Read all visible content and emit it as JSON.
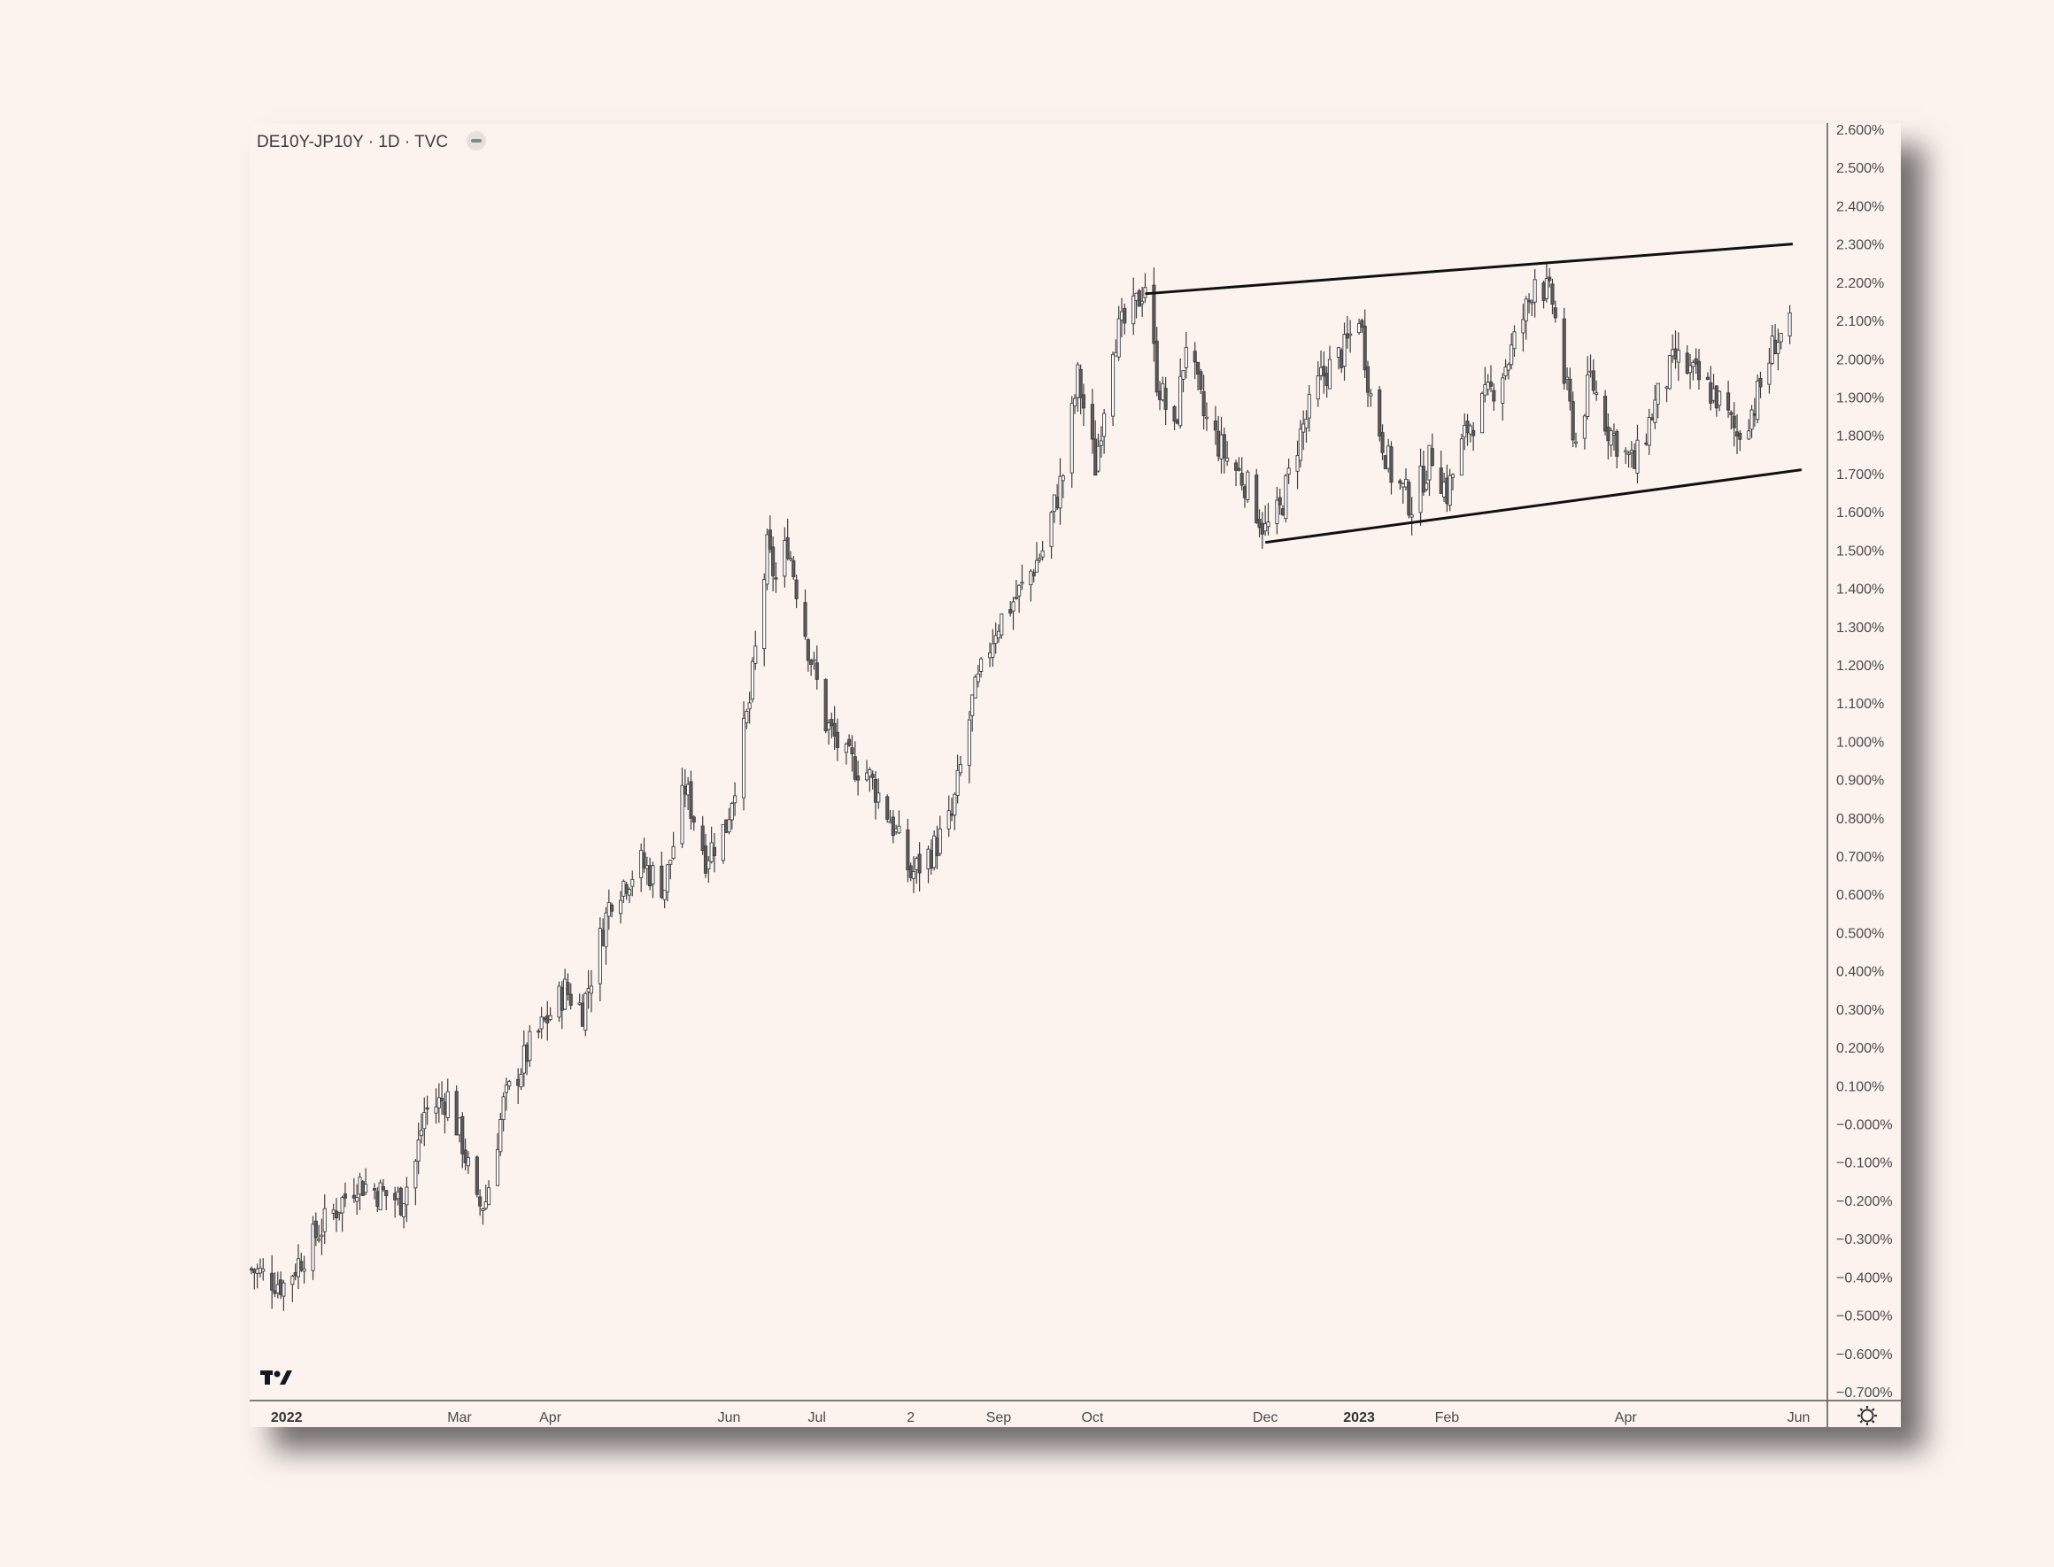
{
  "header": {
    "symbol_title": "DE10Y-JP10Y · 1D · TVC",
    "series_toggle_icon": "minus-pill-icon"
  },
  "branding": {
    "logo_text": "TV",
    "logo_icon": "tradingview-logo-icon"
  },
  "footer": {
    "settings_icon": "gear-icon"
  },
  "colors": {
    "background": "#fcf3ef",
    "candle_body": "#ffffff",
    "candle_wick": "#3e3e3e",
    "trendline": "#111111",
    "axis": "#555555"
  },
  "chart_data": {
    "type": "candlestick",
    "title": "DE10Y-JP10Y · 1D · TVC",
    "xlabel": "",
    "ylabel": "",
    "ylim": [
      -0.7,
      2.6
    ],
    "y_axis_side": "right",
    "y_tick_labels": [
      "2.600%",
      "2.500%",
      "2.400%",
      "2.300%",
      "2.200%",
      "2.100%",
      "2.000%",
      "1.900%",
      "1.800%",
      "1.700%",
      "1.600%",
      "1.500%",
      "1.400%",
      "1.300%",
      "1.200%",
      "1.100%",
      "1.000%",
      "0.900%",
      "0.800%",
      "0.700%",
      "0.600%",
      "0.500%",
      "0.400%",
      "0.300%",
      "0.200%",
      "0.100%",
      "−0.000%",
      "−0.100%",
      "−0.200%",
      "−0.300%",
      "−0.400%",
      "−0.500%",
      "−0.600%",
      "−0.700%"
    ],
    "y_tick_values": [
      2.6,
      2.5,
      2.4,
      2.3,
      2.2,
      2.1,
      2.0,
      1.9,
      1.8,
      1.7,
      1.6,
      1.5,
      1.4,
      1.3,
      1.2,
      1.1,
      1.0,
      0.9,
      0.8,
      0.7,
      0.6,
      0.5,
      0.4,
      0.3,
      0.2,
      0.1,
      0.0,
      -0.1,
      -0.2,
      -0.3,
      -0.4,
      -0.5,
      -0.6,
      -0.7
    ],
    "x_range": [
      "2021-12-20",
      "2023-06-09"
    ],
    "x_tick_labels": [
      {
        "label": "2022",
        "date": "2022-01-01",
        "major": true
      },
      {
        "label": "Mar",
        "date": "2022-03-01",
        "major": false
      },
      {
        "label": "Apr",
        "date": "2022-04-01",
        "major": false
      },
      {
        "label": "Jun",
        "date": "2022-06-01",
        "major": false
      },
      {
        "label": "Jul",
        "date": "2022-07-01",
        "major": false
      },
      {
        "label": "2",
        "date": "2022-08-02",
        "major": false
      },
      {
        "label": "Sep",
        "date": "2022-09-01",
        "major": false
      },
      {
        "label": "Oct",
        "date": "2022-10-03",
        "major": false
      },
      {
        "label": "Dec",
        "date": "2022-12-01",
        "major": false
      },
      {
        "label": "2023",
        "date": "2023-01-02",
        "major": true
      },
      {
        "label": "Feb",
        "date": "2023-02-01",
        "major": false
      },
      {
        "label": "Apr",
        "date": "2023-04-03",
        "major": false
      },
      {
        "label": "Jun",
        "date": "2023-06-01",
        "major": false
      }
    ],
    "price_path": [
      {
        "date": "2021-12-20",
        "value": -0.38
      },
      {
        "date": "2021-12-31",
        "value": -0.42
      },
      {
        "date": "2022-01-12",
        "value": -0.28
      },
      {
        "date": "2022-01-25",
        "value": -0.15
      },
      {
        "date": "2022-02-02",
        "value": -0.18
      },
      {
        "date": "2022-02-09",
        "value": -0.2
      },
      {
        "date": "2022-02-14",
        "value": -0.1
      },
      {
        "date": "2022-02-17",
        "value": 0.03
      },
      {
        "date": "2022-02-25",
        "value": 0.07
      },
      {
        "date": "2022-03-02",
        "value": -0.05
      },
      {
        "date": "2022-03-07",
        "value": -0.22
      },
      {
        "date": "2022-03-10",
        "value": -0.2
      },
      {
        "date": "2022-03-16",
        "value": 0.05
      },
      {
        "date": "2022-03-25",
        "value": 0.2
      },
      {
        "date": "2022-04-06",
        "value": 0.35
      },
      {
        "date": "2022-04-12",
        "value": 0.3
      },
      {
        "date": "2022-04-22",
        "value": 0.6
      },
      {
        "date": "2022-05-02",
        "value": 0.68
      },
      {
        "date": "2022-05-10",
        "value": 0.62
      },
      {
        "date": "2022-05-17",
        "value": 0.88
      },
      {
        "date": "2022-05-24",
        "value": 0.7
      },
      {
        "date": "2022-05-31",
        "value": 0.78
      },
      {
        "date": "2022-06-08",
        "value": 1.1
      },
      {
        "date": "2022-06-14",
        "value": 1.5
      },
      {
        "date": "2022-06-17",
        "value": 1.42
      },
      {
        "date": "2022-06-21",
        "value": 1.52
      },
      {
        "date": "2022-06-28",
        "value": 1.25
      },
      {
        "date": "2022-07-04",
        "value": 1.05
      },
      {
        "date": "2022-07-11",
        "value": 0.95
      },
      {
        "date": "2022-07-18",
        "value": 0.92
      },
      {
        "date": "2022-07-26",
        "value": 0.8
      },
      {
        "date": "2022-08-02",
        "value": 0.65
      },
      {
        "date": "2022-08-10",
        "value": 0.72
      },
      {
        "date": "2022-08-16",
        "value": 0.8
      },
      {
        "date": "2022-08-23",
        "value": 1.1
      },
      {
        "date": "2022-08-31",
        "value": 1.3
      },
      {
        "date": "2022-09-09",
        "value": 1.4
      },
      {
        "date": "2022-09-16",
        "value": 1.5
      },
      {
        "date": "2022-09-23",
        "value": 1.7
      },
      {
        "date": "2022-09-28",
        "value": 1.95
      },
      {
        "date": "2022-10-04",
        "value": 1.72
      },
      {
        "date": "2022-10-10",
        "value": 2.05
      },
      {
        "date": "2022-10-17",
        "value": 2.12
      },
      {
        "date": "2022-10-21",
        "value": 2.2
      },
      {
        "date": "2022-10-25",
        "value": 1.95
      },
      {
        "date": "2022-10-31",
        "value": 1.8
      },
      {
        "date": "2022-11-04",
        "value": 2.05
      },
      {
        "date": "2022-11-10",
        "value": 1.85
      },
      {
        "date": "2022-11-17",
        "value": 1.75
      },
      {
        "date": "2022-11-24",
        "value": 1.68
      },
      {
        "date": "2022-12-01",
        "value": 1.55
      },
      {
        "date": "2022-12-06",
        "value": 1.6
      },
      {
        "date": "2022-12-12",
        "value": 1.78
      },
      {
        "date": "2022-12-20",
        "value": 1.95
      },
      {
        "date": "2022-12-28",
        "value": 2.02
      },
      {
        "date": "2023-01-02",
        "value": 2.12
      },
      {
        "date": "2023-01-06",
        "value": 1.9
      },
      {
        "date": "2023-01-13",
        "value": 1.7
      },
      {
        "date": "2023-01-20",
        "value": 1.62
      },
      {
        "date": "2023-01-27",
        "value": 1.75
      },
      {
        "date": "2023-02-01",
        "value": 1.65
      },
      {
        "date": "2023-02-08",
        "value": 1.82
      },
      {
        "date": "2023-02-15",
        "value": 1.9
      },
      {
        "date": "2023-02-22",
        "value": 2.0
      },
      {
        "date": "2023-03-01",
        "value": 2.15
      },
      {
        "date": "2023-03-03",
        "value": 2.22
      },
      {
        "date": "2023-03-09",
        "value": 2.15
      },
      {
        "date": "2023-03-13",
        "value": 1.95
      },
      {
        "date": "2023-03-17",
        "value": 1.78
      },
      {
        "date": "2023-03-22",
        "value": 1.95
      },
      {
        "date": "2023-03-28",
        "value": 1.82
      },
      {
        "date": "2023-04-03",
        "value": 1.75
      },
      {
        "date": "2023-04-06",
        "value": 1.72
      },
      {
        "date": "2023-04-13",
        "value": 1.88
      },
      {
        "date": "2023-04-20",
        "value": 2.0
      },
      {
        "date": "2023-04-27",
        "value": 1.95
      },
      {
        "date": "2023-05-04",
        "value": 1.9
      },
      {
        "date": "2023-05-11",
        "value": 1.8
      },
      {
        "date": "2023-05-17",
        "value": 1.88
      },
      {
        "date": "2023-05-24",
        "value": 2.05
      },
      {
        "date": "2023-05-30",
        "value": 2.08
      }
    ],
    "trendlines": [
      {
        "name": "upper-channel",
        "from": {
          "date": "2022-10-21",
          "value": 2.17
        },
        "to": {
          "date": "2023-05-30",
          "value": 2.3
        }
      },
      {
        "name": "lower-channel",
        "from": {
          "date": "2022-12-01",
          "value": 1.52
        },
        "to": {
          "date": "2023-06-02",
          "value": 1.71
        }
      }
    ]
  }
}
